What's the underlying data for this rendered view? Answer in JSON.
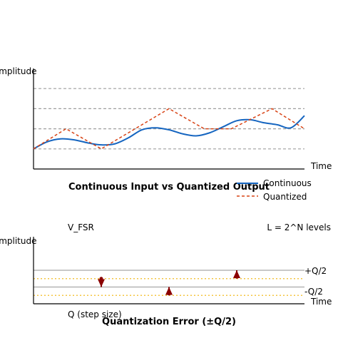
{
  "chart_data": [
    {
      "type": "line",
      "title": "Continuous Input vs Quantized Output",
      "xlabel": "Time",
      "ylabel": "Amplitude",
      "xlim": [
        0,
        10
      ],
      "ylim": [
        0,
        5
      ],
      "quantization_levels": [
        1,
        2,
        3,
        4
      ],
      "grid": "horizontal dashed at quantization levels",
      "legend_position": "bottom-right",
      "series": [
        {
          "name": "Continuous",
          "style": "solid",
          "color": "#1565c0",
          "x": [
            0,
            0.5,
            1,
            1.5,
            2,
            2.5,
            3,
            3.5,
            4,
            4.5,
            5,
            5.5,
            6,
            6.5,
            7,
            7.5,
            8,
            8.5,
            9,
            9.5,
            10
          ],
          "y": [
            1.0,
            1.35,
            1.5,
            1.45,
            1.3,
            1.2,
            1.25,
            1.55,
            1.95,
            2.05,
            1.95,
            1.75,
            1.65,
            1.8,
            2.1,
            2.4,
            2.45,
            2.3,
            2.2,
            2.05,
            2.65
          ]
        },
        {
          "name": "Quantized",
          "style": "dashed",
          "color": "#d84315",
          "x": [
            0,
            1.2,
            2.5,
            5,
            6.3,
            7.3,
            8.8,
            10
          ],
          "y": [
            1,
            2,
            1,
            3,
            2,
            2,
            3,
            2
          ]
        }
      ]
    },
    {
      "type": "line",
      "title": "Quantization Error (±Q/2)",
      "xlabel": "Time",
      "ylabel": "Amplitude",
      "xlim": [
        0,
        10
      ],
      "ylim": [
        0,
        4
      ],
      "levels": [
        1,
        2
      ],
      "error_bounds": [
        {
          "label": "+Q/2",
          "value": 1.5
        },
        {
          "label": "-Q/2",
          "value": 0.5
        }
      ],
      "error_arrows": [
        {
          "x": 2.5,
          "from": 1.5,
          "to": 1.0,
          "direction": "down"
        },
        {
          "x": 5.0,
          "from": 0.6,
          "to": 1.0,
          "direction": "up"
        },
        {
          "x": 7.5,
          "from": 1.6,
          "to": 2.0,
          "direction": "up"
        }
      ],
      "annotations": {
        "vfsr": "V_FSR",
        "levels": "L = 2^N levels",
        "step": "Q (step size)"
      }
    }
  ]
}
